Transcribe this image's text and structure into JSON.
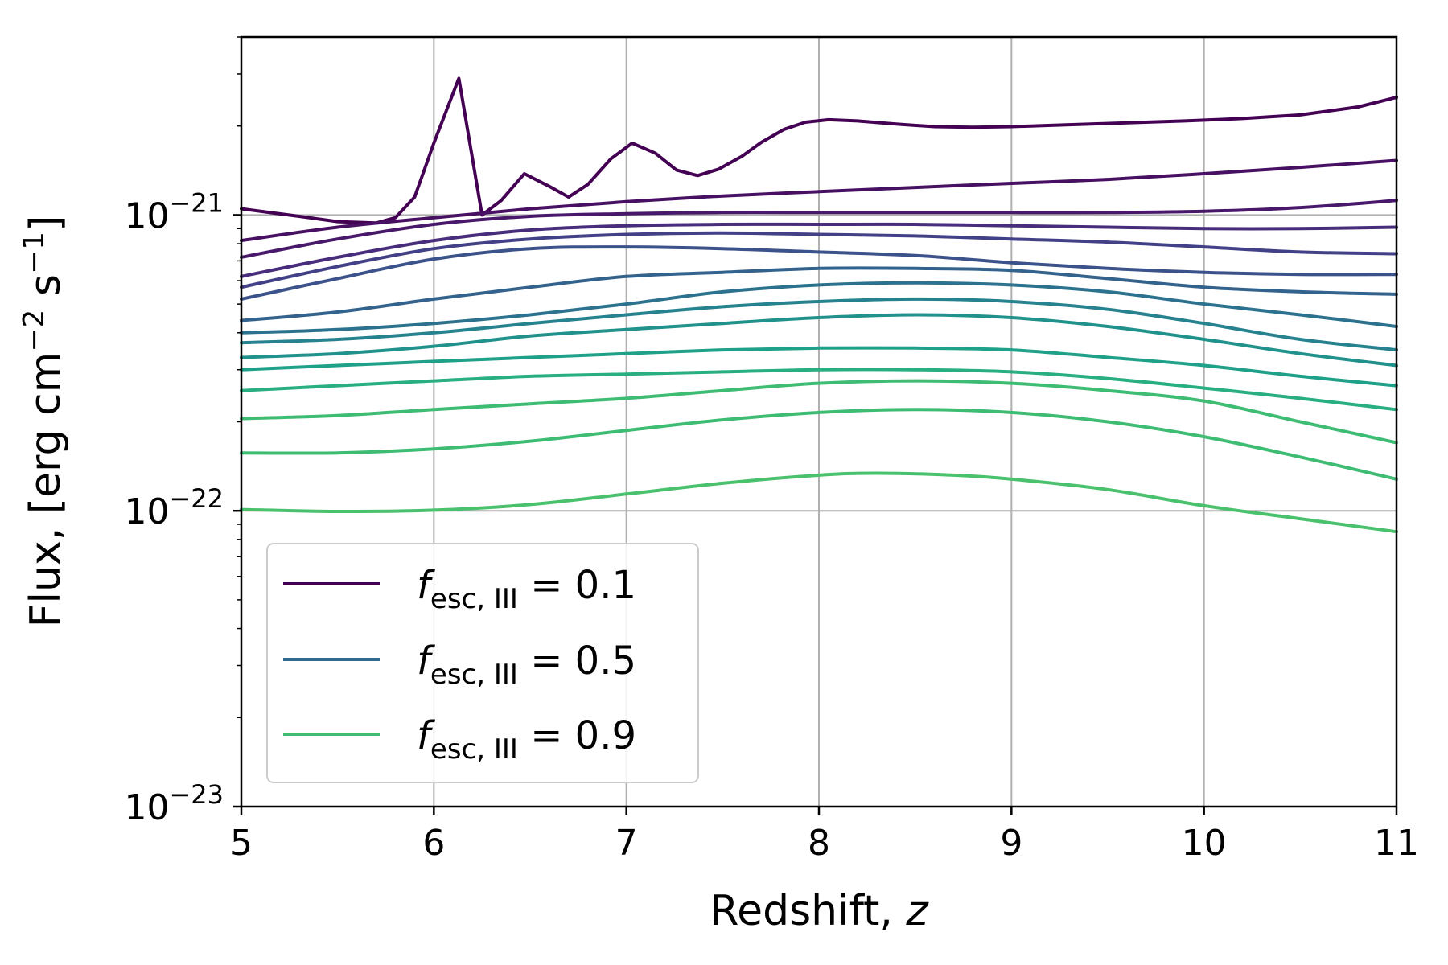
{
  "chart_data": {
    "type": "line",
    "title": "",
    "xlabel": "Redshift, ",
    "xlabel_var": "z",
    "ylabel": "Flux, [erg cm",
    "ylabel_exp1": "−2",
    "ylabel_mid": " s",
    "ylabel_exp2": "−1",
    "ylabel_end": "]",
    "xscale": "linear",
    "yscale": "log",
    "xlim": [
      5,
      11
    ],
    "ylim": [
      1e-23,
      4e-21
    ],
    "grid": true,
    "x_ticks": [
      "5",
      "6",
      "7",
      "8",
      "9",
      "10",
      "11"
    ],
    "y_ticks": [
      {
        "base": "10",
        "exp": "−21"
      },
      {
        "base": "10",
        "exp": "−22"
      },
      {
        "base": "10",
        "exp": "−23"
      }
    ],
    "legend": {
      "location": "lower-left",
      "entries": [
        {
          "symbol": "f",
          "subscript": "esc, III",
          "text": " = 0.1",
          "color": "#440154"
        },
        {
          "symbol": "f",
          "subscript": "esc, III",
          "text": " = 0.5",
          "color": "#31688e"
        },
        {
          "symbol": "f",
          "subscript": "esc, III",
          "text": " = 0.9",
          "color": "#3fbc73"
        }
      ]
    },
    "series": [
      {
        "name": "f_esc,III = 0.1",
        "color": "#440154",
        "x": [
          5.0,
          5.3,
          5.5,
          5.7,
          5.8,
          5.9,
          6.0,
          6.13,
          6.25,
          6.35,
          6.47,
          6.6,
          6.7,
          6.8,
          6.92,
          7.03,
          7.15,
          7.26,
          7.37,
          7.48,
          7.6,
          7.7,
          7.82,
          7.93,
          8.05,
          8.2,
          8.4,
          8.6,
          8.8,
          9.0,
          9.3,
          9.6,
          9.9,
          10.2,
          10.5,
          10.8,
          11.0
        ],
        "y": [
          1.05e-21,
          9.9e-22,
          9.5e-22,
          9.4e-22,
          9.8e-22,
          1.15e-21,
          1.75e-21,
          2.9e-21,
          1e-21,
          1.12e-21,
          1.38e-21,
          1.25e-21,
          1.15e-21,
          1.27e-21,
          1.55e-21,
          1.75e-21,
          1.62e-21,
          1.42e-21,
          1.36e-21,
          1.43e-21,
          1.58e-21,
          1.76e-21,
          1.95e-21,
          2.06e-21,
          2.1e-21,
          2.08e-21,
          2.03e-21,
          1.99e-21,
          1.98e-21,
          1.99e-21,
          2.02e-21,
          2.05e-21,
          2.08e-21,
          2.12e-21,
          2.18e-21,
          2.32e-21,
          2.5e-21
        ]
      },
      {
        "name": "series-2",
        "color": "#471063",
        "x": [
          5.0,
          5.5,
          6.0,
          6.5,
          7.0,
          7.5,
          8.0,
          8.5,
          9.0,
          9.5,
          10.0,
          10.5,
          11.0
        ],
        "y": [
          8.2e-22,
          9.1e-22,
          9.8e-22,
          1.05e-21,
          1.11e-21,
          1.16e-21,
          1.2e-21,
          1.24e-21,
          1.28e-21,
          1.32e-21,
          1.38e-21,
          1.45e-21,
          1.53e-21
        ]
      },
      {
        "name": "series-3",
        "color": "#48186a",
        "x": [
          5.0,
          5.5,
          6.0,
          6.5,
          7.0,
          7.5,
          8.0,
          8.5,
          9.0,
          9.5,
          10.0,
          10.5,
          11.0
        ],
        "y": [
          7.2e-22,
          8.3e-22,
          9.3e-22,
          9.9e-22,
          1.01e-21,
          1.02e-21,
          1.02e-21,
          1.02e-21,
          1.02e-21,
          1.02e-21,
          1.03e-21,
          1.06e-21,
          1.12e-21
        ]
      },
      {
        "name": "series-4",
        "color": "#472d7b",
        "x": [
          5.0,
          5.5,
          6.0,
          6.5,
          7.0,
          7.5,
          8.0,
          8.5,
          9.0,
          9.5,
          10.0,
          10.5,
          11.0
        ],
        "y": [
          6.2e-22,
          7.2e-22,
          8.2e-22,
          8.9e-22,
          9.2e-22,
          9.3e-22,
          9.3e-22,
          9.3e-22,
          9.2e-22,
          9.1e-22,
          9e-22,
          9e-22,
          9.1e-22
        ]
      },
      {
        "name": "series-5",
        "color": "#424086",
        "x": [
          5.0,
          5.5,
          6.0,
          6.5,
          7.0,
          7.5,
          8.0,
          8.5,
          9.0,
          9.5,
          10.0,
          10.5,
          11.0
        ],
        "y": [
          5.7e-22,
          6.7e-22,
          7.7e-22,
          8.3e-22,
          8.6e-22,
          8.7e-22,
          8.6e-22,
          8.5e-22,
          8.3e-22,
          8.1e-22,
          7.8e-22,
          7.5e-22,
          7.4e-22
        ]
      },
      {
        "name": "series-6",
        "color": "#3b528b",
        "x": [
          5.0,
          5.5,
          6.0,
          6.5,
          7.0,
          7.5,
          8.0,
          8.5,
          9.0,
          9.5,
          10.0,
          10.5,
          11.0
        ],
        "y": [
          5.2e-22,
          6.1e-22,
          7.1e-22,
          7.7e-22,
          7.8e-22,
          7.7e-22,
          7.5e-22,
          7.3e-22,
          6.9e-22,
          6.6e-22,
          6.4e-22,
          6.3e-22,
          6.3e-22
        ]
      },
      {
        "name": "series-7",
        "color": "#33638d",
        "x": [
          5.0,
          5.5,
          6.0,
          6.5,
          7.0,
          7.5,
          8.0,
          8.5,
          9.0,
          9.5,
          10.0,
          10.5,
          11.0
        ],
        "y": [
          4.4e-22,
          4.7e-22,
          5.2e-22,
          5.7e-22,
          6.2e-22,
          6.4e-22,
          6.6e-22,
          6.6e-22,
          6.5e-22,
          6.1e-22,
          5.7e-22,
          5.5e-22,
          5.4e-22
        ]
      },
      {
        "name": "series-8",
        "color": "#2c728e",
        "x": [
          5.0,
          5.5,
          6.0,
          6.5,
          7.0,
          7.5,
          8.0,
          8.5,
          9.0,
          9.5,
          10.0,
          10.5,
          11.0
        ],
        "y": [
          4e-22,
          4.1e-22,
          4.3e-22,
          4.6e-22,
          5e-22,
          5.5e-22,
          5.8e-22,
          5.9e-22,
          5.8e-22,
          5.5e-22,
          5e-22,
          4.6e-22,
          4.2e-22
        ]
      },
      {
        "name": "series-9",
        "color": "#26828e",
        "x": [
          5.0,
          5.5,
          6.0,
          6.5,
          7.0,
          7.5,
          8.0,
          8.5,
          9.0,
          9.5,
          10.0,
          10.5,
          11.0
        ],
        "y": [
          3.7e-22,
          3.8e-22,
          4e-22,
          4.3e-22,
          4.6e-22,
          4.9e-22,
          5.1e-22,
          5.2e-22,
          5.1e-22,
          4.8e-22,
          4.3e-22,
          3.8e-22,
          3.5e-22
        ]
      },
      {
        "name": "series-10",
        "color": "#21918c",
        "x": [
          5.0,
          5.5,
          6.0,
          6.5,
          7.0,
          7.5,
          8.0,
          8.5,
          9.0,
          9.5,
          10.0,
          10.5,
          11.0
        ],
        "y": [
          3.3e-22,
          3.4e-22,
          3.6e-22,
          3.9e-22,
          4.1e-22,
          4.3e-22,
          4.5e-22,
          4.6e-22,
          4.5e-22,
          4.2e-22,
          3.8e-22,
          3.4e-22,
          3.1e-22
        ]
      },
      {
        "name": "series-11",
        "color": "#1fa088",
        "x": [
          5.0,
          5.5,
          6.0,
          6.5,
          7.0,
          7.5,
          8.0,
          8.5,
          9.0,
          9.5,
          10.0,
          10.5,
          11.0
        ],
        "y": [
          3e-22,
          3.1e-22,
          3.2e-22,
          3.3e-22,
          3.4e-22,
          3.5e-22,
          3.55e-22,
          3.55e-22,
          3.5e-22,
          3.3e-22,
          3.1e-22,
          2.85e-22,
          2.65e-22
        ]
      },
      {
        "name": "series-12",
        "color": "#28ae80",
        "x": [
          5.0,
          5.5,
          6.0,
          6.5,
          7.0,
          7.5,
          8.0,
          8.5,
          9.0,
          9.5,
          10.0,
          10.5,
          11.0
        ],
        "y": [
          2.55e-22,
          2.65e-22,
          2.75e-22,
          2.85e-22,
          2.9e-22,
          2.95e-22,
          3e-22,
          3e-22,
          2.95e-22,
          2.8e-22,
          2.6e-22,
          2.4e-22,
          2.2e-22
        ]
      },
      {
        "name": "series-13",
        "color": "#3fbc73",
        "x": [
          5.0,
          5.5,
          6.0,
          6.5,
          7.0,
          7.5,
          8.0,
          8.5,
          9.0,
          9.5,
          10.0,
          10.5,
          11.0
        ],
        "y": [
          2.05e-22,
          2.1e-22,
          2.2e-22,
          2.3e-22,
          2.4e-22,
          2.55e-22,
          2.7e-22,
          2.75e-22,
          2.7e-22,
          2.55e-22,
          2.35e-22,
          2e-22,
          1.7e-22
        ]
      },
      {
        "name": "series-14",
        "color": "#3fbc73",
        "x": [
          5.0,
          5.5,
          6.0,
          6.5,
          7.0,
          7.5,
          8.0,
          8.5,
          9.0,
          9.5,
          10.0,
          10.5,
          11.0
        ],
        "y": [
          1.57e-22,
          1.57e-22,
          1.62e-22,
          1.72e-22,
          1.87e-22,
          2.03e-22,
          2.15e-22,
          2.2e-22,
          2.15e-22,
          2e-22,
          1.78e-22,
          1.52e-22,
          1.28e-22
        ]
      },
      {
        "name": "series-15",
        "color": "#4ac16d",
        "x": [
          5.0,
          5.5,
          6.0,
          6.5,
          7.0,
          7.5,
          8.0,
          8.3,
          8.7,
          9.0,
          9.5,
          10.0,
          10.5,
          11.0
        ],
        "y": [
          1.01e-22,
          9.95e-23,
          1.005e-22,
          1.05e-22,
          1.14e-22,
          1.24e-22,
          1.32e-22,
          1.34e-22,
          1.32e-22,
          1.28e-22,
          1.18e-22,
          1.04e-22,
          9.4e-23,
          8.5e-23
        ]
      }
    ]
  }
}
